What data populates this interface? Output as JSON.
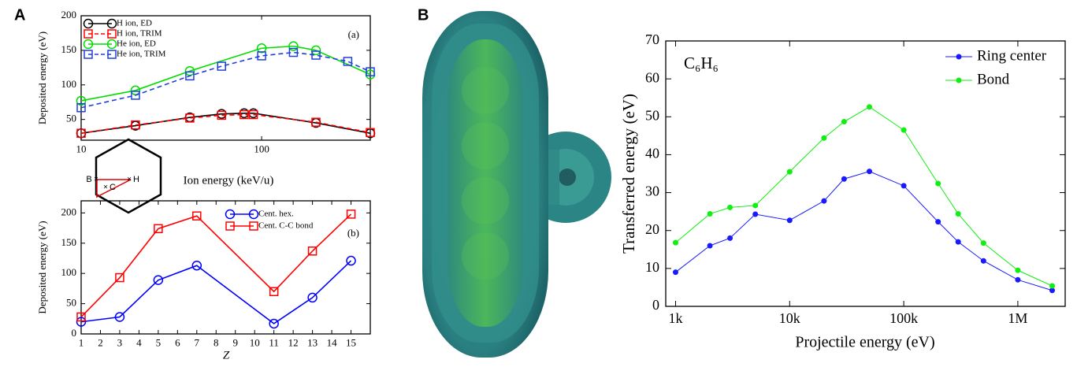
{
  "panels": [
    "A",
    "B"
  ],
  "inset_labels": [
    "B",
    "C",
    "H"
  ],
  "chart_data": [
    {
      "type": "line",
      "annotation": "(a)",
      "xlabel": "Ion energy (keV/u)",
      "ylabel": "Deposited energy (eV)",
      "xscale": "log",
      "xlim": [
        10,
        400
      ],
      "xticks": [
        10,
        100
      ],
      "ylim": [
        20,
        200
      ],
      "yticks": [
        50,
        100,
        150,
        200
      ],
      "legend": "upper left",
      "series": [
        {
          "name": "H ion, ED",
          "color": "#000000",
          "marker": "circle",
          "dashed": false,
          "x": [
            10,
            20,
            40,
            60,
            80,
            90,
            200,
            400
          ],
          "values": [
            30,
            41,
            53,
            58,
            59,
            59,
            45,
            30
          ]
        },
        {
          "name": "H ion, TRIM",
          "color": "#ff0000",
          "marker": "square",
          "dashed": true,
          "x": [
            10,
            20,
            40,
            60,
            80,
            90,
            200,
            400
          ],
          "values": [
            30,
            42,
            52,
            56,
            57,
            57,
            46,
            31
          ]
        },
        {
          "name": "He ion, ED",
          "color": "#00dd00",
          "marker": "circle",
          "dashed": false,
          "x": [
            10,
            20,
            40,
            100,
            150,
            200,
            400
          ],
          "values": [
            77,
            92,
            120,
            153,
            156,
            150,
            115
          ]
        },
        {
          "name": "He ion, TRIM",
          "color": "#1f3fe0",
          "marker": "square",
          "dashed": true,
          "x": [
            10,
            20,
            40,
            60,
            100,
            150,
            200,
            300,
            400
          ],
          "values": [
            67,
            85,
            113,
            127,
            142,
            147,
            143,
            134,
            119
          ]
        }
      ]
    },
    {
      "type": "line",
      "annotation": "(b)",
      "xlabel": "Z",
      "ylabel": "Deposited energy (eV)",
      "xlim": [
        1,
        16
      ],
      "xticks": [
        1,
        2,
        3,
        4,
        5,
        6,
        7,
        8,
        9,
        10,
        11,
        12,
        13,
        14,
        15
      ],
      "ylim": [
        0,
        220
      ],
      "yticks": [
        0,
        50,
        100,
        150,
        200
      ],
      "legend": "upper center",
      "x": [
        1,
        3,
        5,
        7,
        11,
        13,
        15
      ],
      "series": [
        {
          "name": "Cent. hex.",
          "color": "#0000ff",
          "marker": "circle",
          "dashed": false,
          "values": [
            20,
            28,
            89,
            113,
            17,
            60,
            121
          ]
        },
        {
          "name": "Cent. C-C bond",
          "color": "#ff0000",
          "marker": "square",
          "dashed": false,
          "values": [
            28,
            93,
            174,
            195,
            70,
            137,
            198
          ]
        }
      ]
    },
    {
      "type": "line",
      "annotation": "C₆H₆",
      "xlabel": "Projectile energy (eV)",
      "ylabel": "Transferred energy (eV)",
      "xscale": "log",
      "xlim": [
        820,
        2600000
      ],
      "xticks": [
        {
          "value": 1000,
          "label": "1k"
        },
        {
          "value": 10000,
          "label": "10k"
        },
        {
          "value": 100000,
          "label": "100k"
        },
        {
          "value": 1000000,
          "label": "1M"
        }
      ],
      "ylim": [
        0,
        70
      ],
      "yticks": [
        0,
        10,
        20,
        30,
        40,
        50,
        60,
        70
      ],
      "legend": "upper right",
      "x": [
        1000,
        2000,
        3000,
        5000,
        10000,
        20000,
        30000,
        50000,
        100000,
        200000,
        300000,
        500000,
        1000000,
        2000000
      ],
      "series": [
        {
          "name": "Ring center",
          "color": "#1a1aff",
          "marker": "dot",
          "dashed": false,
          "values": [
            9,
            16,
            18,
            24.3,
            22.7,
            27.8,
            33.6,
            35.6,
            31.8,
            22.3,
            17,
            12,
            7,
            4.2
          ]
        },
        {
          "name": "Bond",
          "color": "#11ee11",
          "marker": "dot",
          "dashed": false,
          "values": [
            16.8,
            24.4,
            26.1,
            26.6,
            35.5,
            44.4,
            48.7,
            52.6,
            46.5,
            32.4,
            24.4,
            16.7,
            9.5,
            5.4
          ]
        }
      ]
    }
  ]
}
